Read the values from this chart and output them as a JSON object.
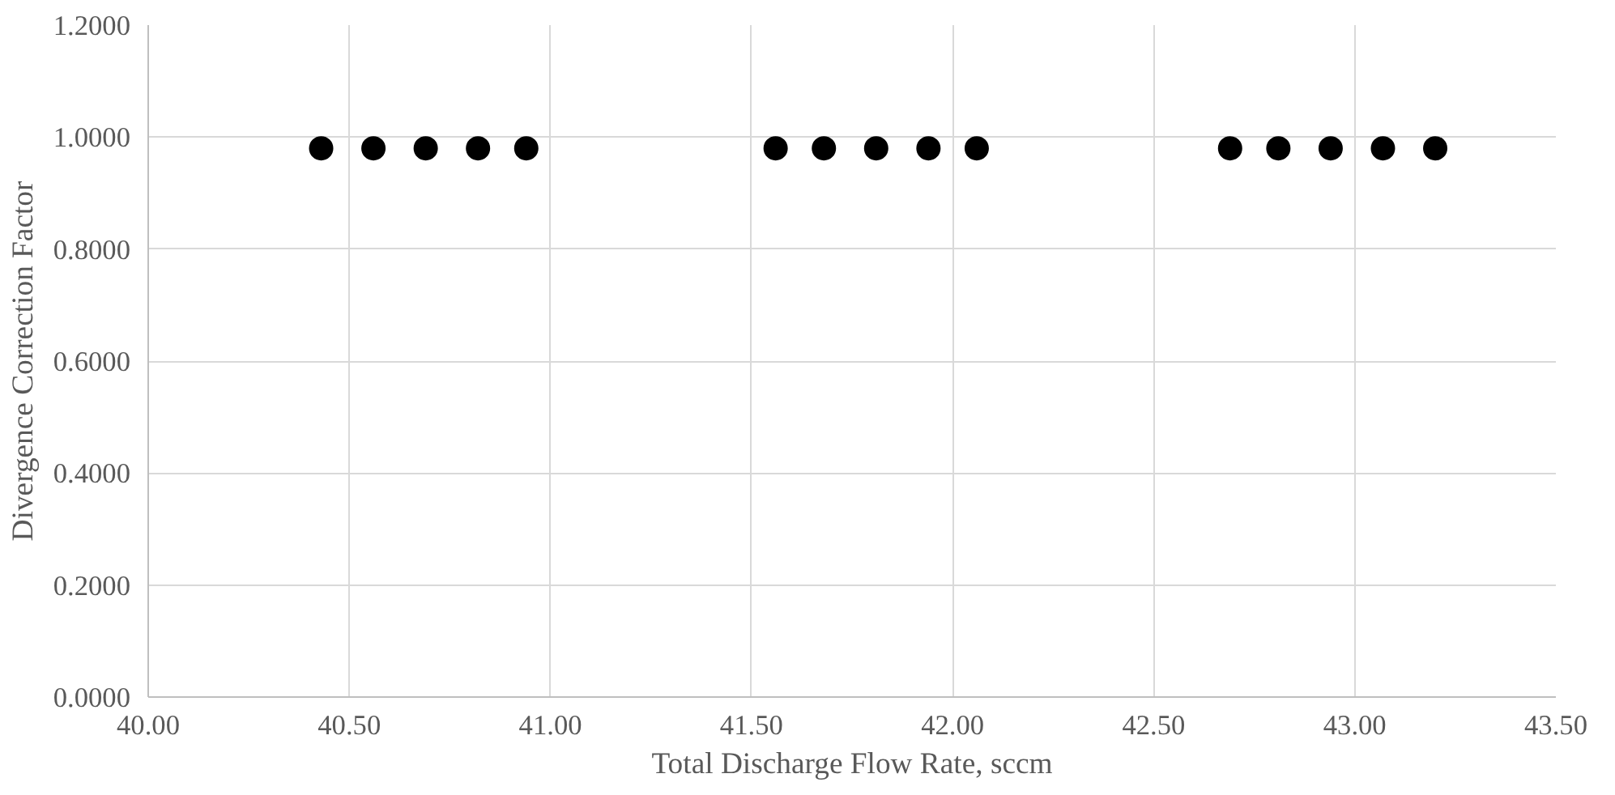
{
  "chart_data": {
    "type": "scatter",
    "xlabel": "Total Discharge Flow Rate, sccm",
    "ylabel": "Divergence Correction Factor",
    "x": [
      40.43,
      40.56,
      40.69,
      40.82,
      40.94,
      41.56,
      41.68,
      41.81,
      41.94,
      42.06,
      42.69,
      42.81,
      42.94,
      43.07,
      43.2
    ],
    "values": [
      0.98,
      0.98,
      0.98,
      0.98,
      0.98,
      0.98,
      0.98,
      0.98,
      0.98,
      0.98,
      0.98,
      0.98,
      0.98,
      0.98,
      0.98
    ],
    "color": "#000000",
    "marker": "circle",
    "xlim": [
      40.0,
      43.5
    ],
    "xticks": [
      {
        "value": 40.0,
        "label": "40.00"
      },
      {
        "value": 40.5,
        "label": "40.50"
      },
      {
        "value": 41.0,
        "label": "41.00"
      },
      {
        "value": 41.5,
        "label": "41.50"
      },
      {
        "value": 42.0,
        "label": "42.00"
      },
      {
        "value": 42.5,
        "label": "42.50"
      },
      {
        "value": 43.0,
        "label": "43.00"
      },
      {
        "value": 43.5,
        "label": "43.50"
      }
    ],
    "ylim": [
      0.0,
      1.2
    ],
    "yticks": [
      {
        "value": 0.0,
        "label": "0.0000"
      },
      {
        "value": 0.2,
        "label": "0.2000"
      },
      {
        "value": 0.4,
        "label": "0.4000"
      },
      {
        "value": 0.6,
        "label": "0.6000"
      },
      {
        "value": 0.8,
        "label": "0.8000"
      },
      {
        "value": 1.0,
        "label": "1.0000"
      },
      {
        "value": 1.2,
        "label": "1.2000"
      }
    ],
    "grid": true
  }
}
